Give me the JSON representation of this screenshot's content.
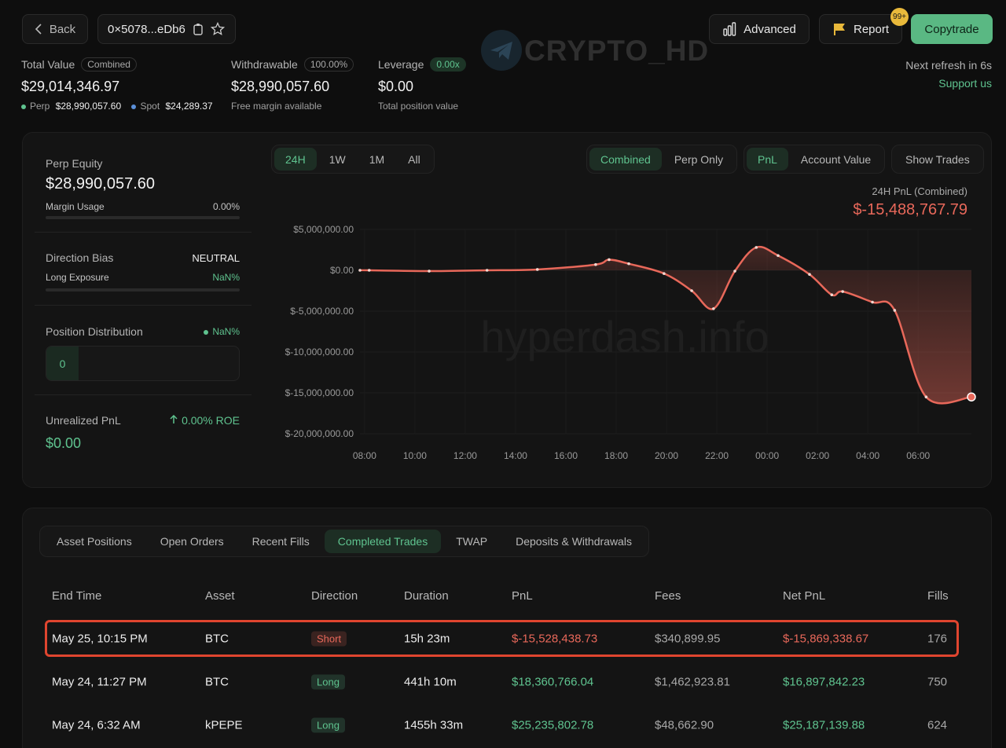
{
  "header": {
    "back": "Back",
    "address": "0×5078...eDb6",
    "logo": "CRYPTO_HD",
    "advanced": "Advanced",
    "report": "Report",
    "report_badge": "99+",
    "copytrade": "Copytrade"
  },
  "summary": {
    "total_value": {
      "label": "Total Value",
      "tag": "Combined",
      "value": "$29,014,346.97",
      "perp_label": "Perp",
      "perp_value": "$28,990,057.60",
      "spot_label": "Spot",
      "spot_value": "$24,289.37"
    },
    "withdrawable": {
      "label": "Withdrawable",
      "tag": "100.00%",
      "value": "$28,990,057.60",
      "note": "Free margin available"
    },
    "leverage": {
      "label": "Leverage",
      "tag": "0.00x",
      "value": "$0.00",
      "note": "Total position value"
    },
    "refresh": "Next refresh in 6s",
    "support": "Support us"
  },
  "account": {
    "perp_equity_label": "Perp Equity",
    "perp_equity": "$28,990,057.60",
    "margin_usage_label": "Margin Usage",
    "margin_usage": "0.00%",
    "direction_bias_label": "Direction Bias",
    "direction_bias": "NEUTRAL",
    "long_exposure_label": "Long Exposure",
    "long_exposure": "NaN%",
    "position_distribution_label": "Position Distribution",
    "position_distribution": "NaN%",
    "position_count": "0",
    "unrealized_pnl_label": "Unrealized PnL",
    "roe": "0.00% ROE",
    "unrealized_pnl": "$0.00"
  },
  "controls": {
    "ranges": [
      {
        "label": "24H",
        "active": true
      },
      {
        "label": "1W"
      },
      {
        "label": "1M"
      },
      {
        "label": "All"
      }
    ],
    "views": [
      {
        "label": "Combined",
        "active": true
      },
      {
        "label": "Perp Only"
      }
    ],
    "metrics": [
      {
        "label": "PnL",
        "active": true
      },
      {
        "label": "Account Value"
      }
    ],
    "show_trades": "Show Trades"
  },
  "chart": {
    "type": "line",
    "title": "24H PnL (Combined)",
    "total": "$-15,488,767.79",
    "watermark": "hyperdash.info",
    "color": "#e8685a",
    "x": [
      "07:49",
      "08:11",
      "10:34",
      "12:52",
      "14:52",
      "17:11",
      "17:43",
      "18:30",
      "19:54",
      "21:00",
      "21:52",
      "22:43",
      "23:34",
      "00:26",
      "01:41",
      "02:34",
      "03:00",
      "04:11",
      "05:04",
      "06:19",
      "08:07"
    ],
    "values": [
      0,
      0,
      -100000,
      0,
      100000,
      700000,
      1300000,
      800000,
      -400000,
      -2500000,
      -4700000,
      -100000,
      2800000,
      1800000,
      -500000,
      -3000000,
      -2600000,
      -3900000,
      -4900000,
      -15500000,
      -15500000
    ],
    "xlim": [
      "07:49",
      "08:07"
    ],
    "xticks": [
      "08:00",
      "10:00",
      "12:00",
      "14:00",
      "16:00",
      "18:00",
      "20:00",
      "22:00",
      "00:00",
      "02:00",
      "04:00",
      "06:00"
    ],
    "ylim": [
      -20000000,
      5000000
    ],
    "yticks": [
      {
        "value": 5000000,
        "label": "$5,000,000.00"
      },
      {
        "value": 0,
        "label": "$0.00"
      },
      {
        "value": -5000000,
        "label": "$-5,000,000.00"
      },
      {
        "value": -10000000,
        "label": "$-10,000,000.00"
      },
      {
        "value": -15000000,
        "label": "$-15,000,000.00"
      },
      {
        "value": -20000000,
        "label": "$-20,000,000.00"
      }
    ],
    "grid": true
  },
  "tabs": [
    {
      "label": "Asset Positions"
    },
    {
      "label": "Open Orders"
    },
    {
      "label": "Recent Fills"
    },
    {
      "label": "Completed Trades",
      "active": true
    },
    {
      "label": "TWAP"
    },
    {
      "label": "Deposits & Withdrawals"
    }
  ],
  "table": {
    "columns": [
      "End Time",
      "Asset",
      "Direction",
      "Duration",
      "PnL",
      "Fees",
      "Net PnL",
      "Fills"
    ],
    "rows": [
      {
        "cells": [
          "May 25, 10:15 PM",
          "BTC",
          "Short",
          "15h 23m",
          "$-15,528,438.73",
          "$340,899.95",
          "$-15,869,338.67",
          "176"
        ],
        "color": "#e8685a",
        "highlighted": true
      },
      {
        "cells": [
          "May 24, 11:27 PM",
          "BTC",
          "Long",
          "441h 10m",
          "$18,360,766.04",
          "$1,462,923.81",
          "$16,897,842.23",
          "750"
        ],
        "color": "#5fc38f"
      },
      {
        "cells": [
          "May 24, 6:32 AM",
          "kPEPE",
          "Long",
          "1455h 33m",
          "$25,235,802.78",
          "$48,662.90",
          "$25,187,139.88",
          "624"
        ],
        "color": "#5fc38f"
      }
    ]
  }
}
